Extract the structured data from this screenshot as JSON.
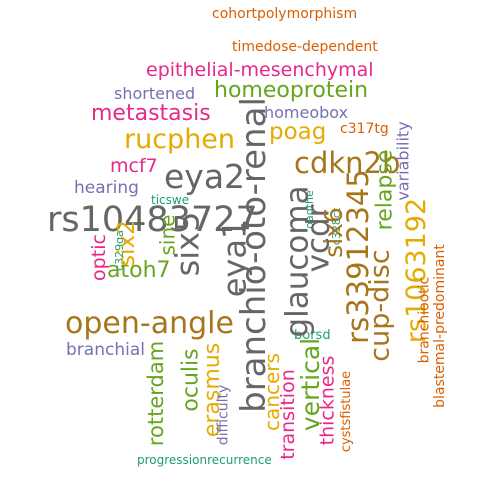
{
  "words": [
    "cohortpolymorphism",
    "timedose-dependent",
    "epithelial-mesenchymal",
    "shortened",
    "homeoprotein",
    "metastasis",
    "homeobox",
    "rucphen",
    "poag",
    "c317tg",
    "mcf7",
    "eya2",
    "cdkn2b",
    "hearing",
    "ticswe",
    "oagthe",
    "c328ct",
    "rs10483727",
    "branchio-oto-renal",
    "six5",
    "eya1",
    "glaucoma",
    "vcdr",
    "six6",
    "rs33912345",
    "relapse",
    "variability",
    "optic",
    "c329ga",
    "six2",
    "rs1063192",
    "atoh7",
    "sine",
    "cup-disc",
    "branchiootic",
    "blastemal-predominant",
    "open-angle",
    "branchial",
    "borsd",
    "rotterdam",
    "oculis",
    "erasmus",
    "difficulty",
    "cancers",
    "transition",
    "vertical",
    "thickness",
    "cystsfistulae",
    "progressionrecurrence"
  ]
}
